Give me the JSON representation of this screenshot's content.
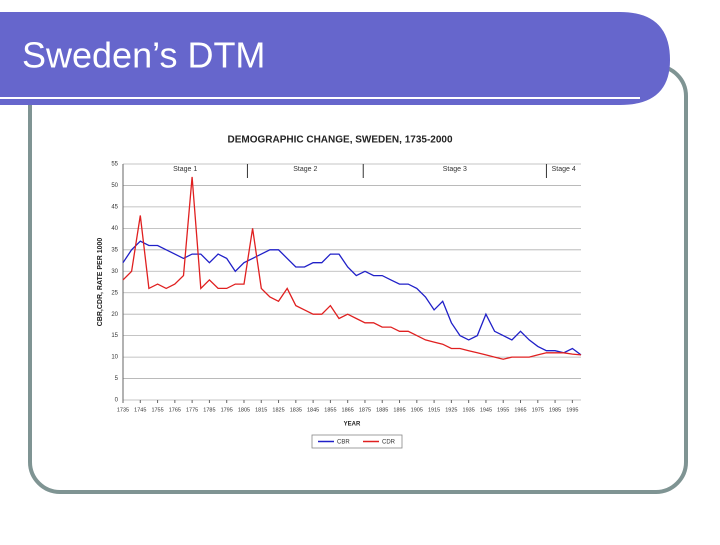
{
  "title": "Sweden’s DTM",
  "chart_data": {
    "type": "line",
    "title": "DEMOGRAPHIC CHANGE, SWEDEN, 1735-2000",
    "x_label": "YEAR",
    "y_label": "CBR,CDR, RATE PER 1000",
    "x": [
      1735,
      1740,
      1745,
      1750,
      1755,
      1760,
      1765,
      1770,
      1775,
      1780,
      1785,
      1790,
      1795,
      1800,
      1805,
      1810,
      1815,
      1820,
      1825,
      1830,
      1835,
      1840,
      1845,
      1850,
      1855,
      1860,
      1865,
      1870,
      1875,
      1880,
      1885,
      1890,
      1895,
      1900,
      1905,
      1910,
      1915,
      1920,
      1925,
      1930,
      1935,
      1940,
      1945,
      1950,
      1955,
      1960,
      1965,
      1970,
      1975,
      1980,
      1985,
      1990,
      1995,
      2000
    ],
    "series": [
      {
        "name": "CBR",
        "color": "#2020c8",
        "values": [
          32,
          35,
          37,
          36,
          36,
          35,
          34,
          33,
          34,
          34,
          32,
          34,
          33,
          30,
          32,
          33,
          34,
          35,
          35,
          33,
          31,
          31,
          32,
          32,
          34,
          34,
          31,
          29,
          30,
          29,
          29,
          28,
          27,
          27,
          26,
          24,
          21,
          23,
          18,
          15,
          14,
          15,
          20,
          16,
          15,
          14,
          16,
          14,
          12.5,
          11.5,
          11.5,
          11,
          12,
          10.5
        ]
      },
      {
        "name": "CDR",
        "color": "#e02020",
        "values": [
          28,
          30,
          43,
          26,
          27,
          26,
          27,
          29,
          52,
          26,
          28,
          26,
          26,
          27,
          27,
          40,
          26,
          24,
          23,
          26,
          22,
          21,
          20,
          20,
          22,
          19,
          20,
          19,
          18,
          18,
          17,
          17,
          16,
          16,
          15,
          14,
          13.5,
          13,
          12,
          12,
          11.5,
          11,
          10.5,
          10,
          9.5,
          10,
          10,
          10,
          10.5,
          11,
          11,
          11,
          10.7,
          10.5
        ]
      }
    ],
    "stages": [
      {
        "label": "Stage 1",
        "start": 1735,
        "end": 1807
      },
      {
        "label": "Stage 2",
        "start": 1807,
        "end": 1874
      },
      {
        "label": "Stage 3",
        "start": 1874,
        "end": 1980
      },
      {
        "label": "Stage 4",
        "start": 1980,
        "end": 2000
      }
    ],
    "xlim": [
      1735,
      2000
    ],
    "xticks": [
      1735,
      1745,
      1755,
      1765,
      1775,
      1785,
      1795,
      1805,
      1815,
      1825,
      1835,
      1845,
      1855,
      1865,
      1875,
      1885,
      1895,
      1905,
      1915,
      1925,
      1935,
      1945,
      1955,
      1965,
      1975,
      1985,
      1995
    ],
    "ylim": [
      0,
      55
    ],
    "yticks": [
      0,
      5,
      10,
      15,
      20,
      25,
      30,
      35,
      40,
      45,
      50,
      55
    ],
    "grid": true,
    "legend": "bottom"
  }
}
